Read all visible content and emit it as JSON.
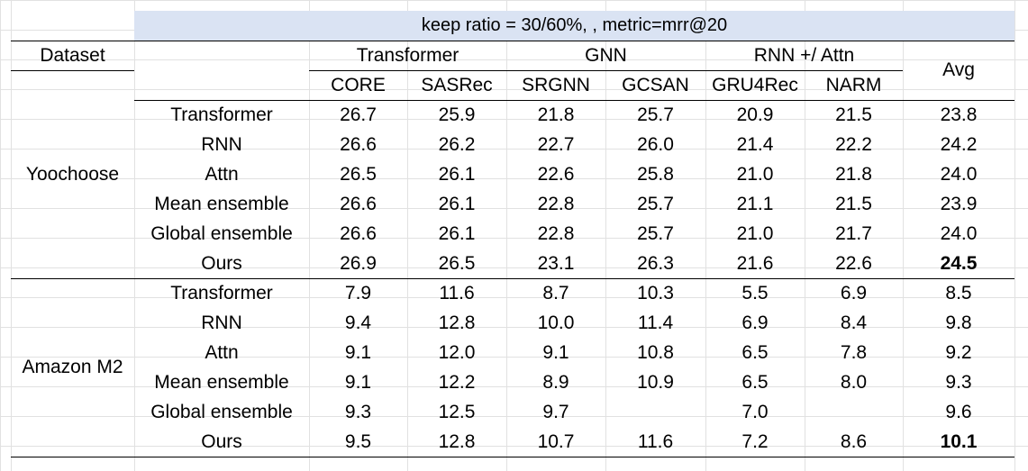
{
  "title": "keep ratio = 30/60%, , metric=mrr@20",
  "header": {
    "dataset": "Dataset",
    "groups": [
      "Transformer",
      "GNN",
      "RNN +/ Attn"
    ],
    "models": [
      "CORE",
      "SASRec",
      "SRGNN",
      "GCSAN",
      "GRU4Rec",
      "NARM"
    ],
    "avg": "Avg"
  },
  "datasets": [
    {
      "name": "Yoochoose",
      "rows": [
        {
          "method": "Transformer",
          "values": [
            "26.7",
            "25.9",
            "21.8",
            "25.7",
            "20.9",
            "21.5"
          ],
          "avg": "23.8",
          "bold_avg": false
        },
        {
          "method": "RNN",
          "values": [
            "26.6",
            "26.2",
            "22.7",
            "26.0",
            "21.4",
            "22.2"
          ],
          "avg": "24.2",
          "bold_avg": false
        },
        {
          "method": "Attn",
          "values": [
            "26.5",
            "26.1",
            "22.6",
            "25.8",
            "21.0",
            "21.8"
          ],
          "avg": "24.0",
          "bold_avg": false
        },
        {
          "method": "Mean ensemble",
          "values": [
            "26.6",
            "26.1",
            "22.8",
            "25.7",
            "21.1",
            "21.5"
          ],
          "avg": "23.9",
          "bold_avg": false
        },
        {
          "method": "Global ensemble",
          "values": [
            "26.6",
            "26.1",
            "22.8",
            "25.7",
            "21.0",
            "21.7"
          ],
          "avg": "24.0",
          "bold_avg": false
        },
        {
          "method": "Ours",
          "values": [
            "26.9",
            "26.5",
            "23.1",
            "26.3",
            "21.6",
            "22.6"
          ],
          "avg": "24.5",
          "bold_avg": true
        }
      ]
    },
    {
      "name": "Amazon M2",
      "rows": [
        {
          "method": "Transformer",
          "values": [
            "7.9",
            "11.6",
            "8.7",
            "10.3",
            "5.5",
            "6.9"
          ],
          "avg": "8.5",
          "bold_avg": false
        },
        {
          "method": "RNN",
          "values": [
            "9.4",
            "12.8",
            "10.0",
            "11.4",
            "6.9",
            "8.4"
          ],
          "avg": "9.8",
          "bold_avg": false
        },
        {
          "method": "Attn",
          "values": [
            "9.1",
            "12.0",
            "9.1",
            "10.8",
            "6.5",
            "7.8"
          ],
          "avg": "9.2",
          "bold_avg": false
        },
        {
          "method": "Mean ensemble",
          "values": [
            "9.1",
            "12.2",
            "8.9",
            "10.9",
            "6.5",
            "8.0"
          ],
          "avg": "9.3",
          "bold_avg": false
        },
        {
          "method": "Global ensemble",
          "values": [
            "9.3",
            "12.5",
            "9.7",
            "",
            "7.0",
            ""
          ],
          "avg": "9.6",
          "bold_avg": false
        },
        {
          "method": "Ours",
          "values": [
            "9.5",
            "12.8",
            "10.7",
            "11.6",
            "7.2",
            "8.6"
          ],
          "avg": "10.1",
          "bold_avg": true
        }
      ]
    }
  ]
}
